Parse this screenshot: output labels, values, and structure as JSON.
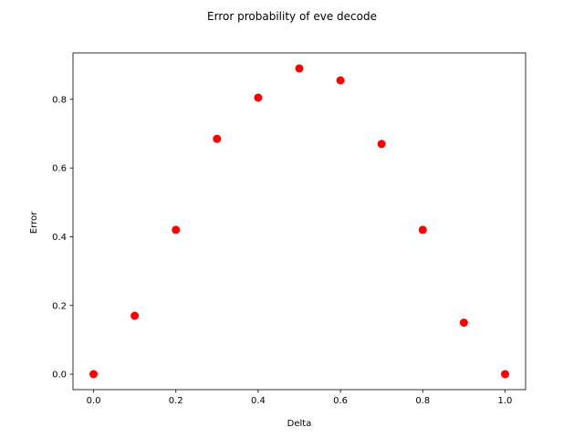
{
  "chart_data": {
    "type": "scatter",
    "title": "Error probability of eve decode",
    "xlabel": "Delta",
    "ylabel": "Error",
    "xlim": [
      -0.05,
      1.05
    ],
    "ylim": [
      -0.045,
      0.935
    ],
    "xticks": [
      "0.0",
      "0.2",
      "0.4",
      "0.6",
      "0.8",
      "1.0"
    ],
    "yticks": [
      "0.0",
      "0.2",
      "0.4",
      "0.6",
      "0.8"
    ],
    "grid": false,
    "marker_color": "#ff0000",
    "series": [
      {
        "x": [
          0.0,
          0.1,
          0.2,
          0.3,
          0.4,
          0.5,
          0.6,
          0.7,
          0.8,
          0.9,
          1.0
        ],
        "y": [
          0.0,
          0.17,
          0.42,
          0.685,
          0.805,
          0.89,
          0.855,
          0.67,
          0.42,
          0.15,
          0.0
        ]
      }
    ]
  }
}
